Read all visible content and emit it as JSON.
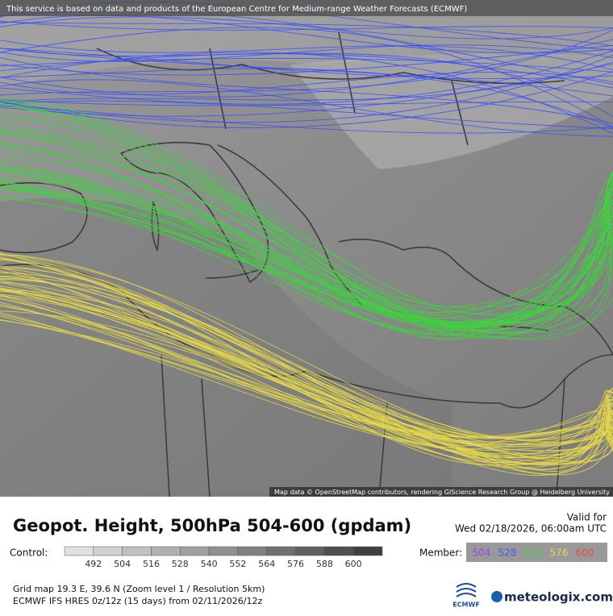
{
  "map": {
    "notice": "This service is based on data and products of the European Centre for Medium-range Weather Forecasts (ECMWF)",
    "attribution": "Map data © OpenStreetMap contributors, rendering GIScience Research Group @ Heidelberg University"
  },
  "title": "Geopot. Height, 500hPa 504-600 (gpdam)",
  "valid": {
    "label": "Valid for",
    "time": "Wed 02/18/2026, 06:00am UTC"
  },
  "control": {
    "label": "Control:",
    "scale": [
      492,
      504,
      516,
      528,
      540,
      552,
      564,
      576,
      588,
      600
    ]
  },
  "member": {
    "label": "Member:",
    "levels": [
      {
        "value": 504,
        "color": "#a040e0"
      },
      {
        "value": 528,
        "color": "#3a5cff"
      },
      {
        "value": 552,
        "color": "#3ed43e"
      },
      {
        "value": 576,
        "color": "#e6d84a"
      },
      {
        "value": 600,
        "color": "#e04a4a"
      }
    ]
  },
  "footer": {
    "grid": "Grid map 19.3 E, 39.6 N (Zoom level 1 / Resolution 5km)",
    "model": "ECMWF IFS HRES 0z/12z (15 days) from  02/11/2026/12z"
  },
  "logos": {
    "ecmwf": "ECMWF",
    "meteologix": "meteologix.com"
  }
}
